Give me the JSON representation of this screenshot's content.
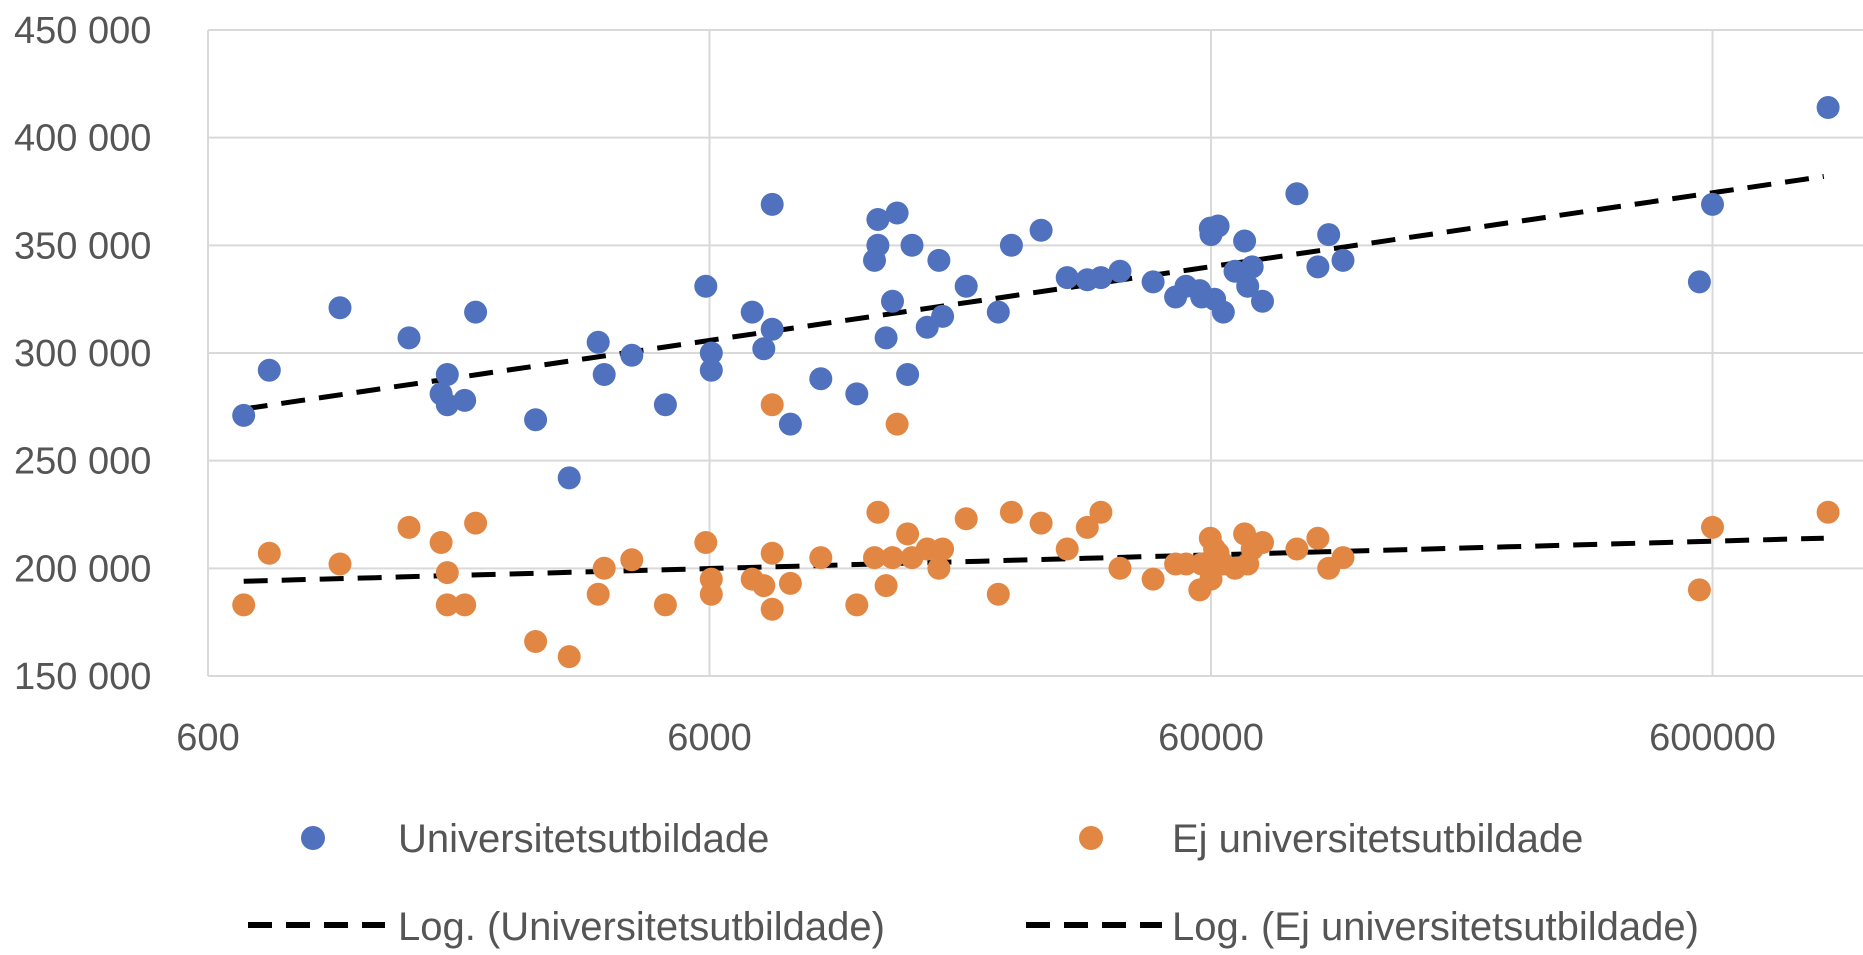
{
  "chart_data": {
    "type": "scatter",
    "title": "",
    "xlabel": "",
    "ylabel": "",
    "x_scale": "log",
    "xlim": [
      600,
      1000000
    ],
    "ylim": [
      150000,
      450000
    ],
    "x_ticks": [
      600,
      6000,
      60000,
      600000
    ],
    "x_tick_labels": [
      "600",
      "6000",
      "60000",
      "600000"
    ],
    "y_ticks": [
      150000,
      200000,
      250000,
      300000,
      350000,
      400000,
      450000
    ],
    "y_tick_labels": [
      "150 000",
      "200 000",
      "250 000",
      "300 000",
      "350 000",
      "400 000",
      "450 000"
    ],
    "grid": true,
    "legend_position": "bottom",
    "colors": {
      "university": "#4f71be",
      "non_university": "#e28743",
      "trend": "#000000",
      "grid": "#d9d9d9"
    },
    "series": [
      {
        "name": "Universitetsutbildade",
        "color": "#4f71be",
        "points": [
          [
            707,
            271000
          ],
          [
            795,
            292000
          ],
          [
            1100,
            321000
          ],
          [
            1510,
            307000
          ],
          [
            1750,
            281000
          ],
          [
            1800,
            290000
          ],
          [
            1800,
            276000
          ],
          [
            1950,
            278000
          ],
          [
            2050,
            319000
          ],
          [
            2700,
            269000
          ],
          [
            3150,
            242000
          ],
          [
            3600,
            305000
          ],
          [
            3700,
            290000
          ],
          [
            4200,
            299000
          ],
          [
            4900,
            276000
          ],
          [
            5900,
            331000
          ],
          [
            6050,
            300000
          ],
          [
            6050,
            292000
          ],
          [
            7300,
            319000
          ],
          [
            7700,
            302000
          ],
          [
            8000,
            311000
          ],
          [
            8000,
            369000
          ],
          [
            8700,
            267000
          ],
          [
            10000,
            288000
          ],
          [
            11800,
            281000
          ],
          [
            12800,
            343000
          ],
          [
            13000,
            350000
          ],
          [
            13000,
            362000
          ],
          [
            13500,
            307000
          ],
          [
            13900,
            324000
          ],
          [
            14200,
            365000
          ],
          [
            14900,
            290000
          ],
          [
            15200,
            350000
          ],
          [
            16300,
            312000
          ],
          [
            17200,
            343000
          ],
          [
            17500,
            317000
          ],
          [
            19500,
            331000
          ],
          [
            22600,
            319000
          ],
          [
            24000,
            350000
          ],
          [
            27500,
            357000
          ],
          [
            31000,
            335000
          ],
          [
            34000,
            334000
          ],
          [
            36200,
            335000
          ],
          [
            39500,
            338000
          ],
          [
            46000,
            333000
          ],
          [
            51000,
            326000
          ],
          [
            53500,
            331000
          ],
          [
            57000,
            329000
          ],
          [
            57500,
            326000
          ],
          [
            59800,
            358000
          ],
          [
            60000,
            355000
          ],
          [
            61000,
            325000
          ],
          [
            62000,
            359000
          ],
          [
            63500,
            319000
          ],
          [
            67000,
            338000
          ],
          [
            70000,
            352000
          ],
          [
            71000,
            331000
          ],
          [
            72500,
            340000
          ],
          [
            76000,
            324000
          ],
          [
            89000,
            374000
          ],
          [
            98000,
            340000
          ],
          [
            103000,
            355000
          ],
          [
            110000,
            343000
          ],
          [
            565000,
            333000
          ],
          [
            600000,
            369000
          ],
          [
            1020000,
            414000
          ]
        ]
      },
      {
        "name": "Ej universitetsutbildade",
        "color": "#e28743",
        "points": [
          [
            707,
            183000
          ],
          [
            795,
            207000
          ],
          [
            1100,
            202000
          ],
          [
            1510,
            219000
          ],
          [
            1750,
            212000
          ],
          [
            1800,
            183000
          ],
          [
            1800,
            198000
          ],
          [
            1950,
            183000
          ],
          [
            2050,
            221000
          ],
          [
            2700,
            166000
          ],
          [
            3150,
            159000
          ],
          [
            3600,
            188000
          ],
          [
            3700,
            200000
          ],
          [
            4200,
            204000
          ],
          [
            4900,
            183000
          ],
          [
            5900,
            212000
          ],
          [
            6050,
            195000
          ],
          [
            6050,
            188000
          ],
          [
            7300,
            195000
          ],
          [
            7700,
            192000
          ],
          [
            8000,
            207000
          ],
          [
            8000,
            181000
          ],
          [
            8000,
            276000
          ],
          [
            8700,
            193000
          ],
          [
            10000,
            205000
          ],
          [
            11800,
            183000
          ],
          [
            12800,
            205000
          ],
          [
            13000,
            226000
          ],
          [
            13500,
            192000
          ],
          [
            13900,
            205000
          ],
          [
            14200,
            267000
          ],
          [
            14900,
            216000
          ],
          [
            15200,
            205000
          ],
          [
            16300,
            209000
          ],
          [
            17200,
            200000
          ],
          [
            17500,
            209000
          ],
          [
            19500,
            223000
          ],
          [
            22600,
            188000
          ],
          [
            24000,
            226000
          ],
          [
            27500,
            221000
          ],
          [
            31000,
            209000
          ],
          [
            34000,
            219000
          ],
          [
            36200,
            226000
          ],
          [
            39500,
            200000
          ],
          [
            46000,
            195000
          ],
          [
            51000,
            202000
          ],
          [
            53500,
            202000
          ],
          [
            57000,
            190000
          ],
          [
            57500,
            202000
          ],
          [
            59800,
            214000
          ],
          [
            60000,
            195000
          ],
          [
            61000,
            209000
          ],
          [
            62000,
            207000
          ],
          [
            63500,
            202000
          ],
          [
            67000,
            200000
          ],
          [
            70000,
            216000
          ],
          [
            71000,
            202000
          ],
          [
            72500,
            209000
          ],
          [
            76000,
            212000
          ],
          [
            89000,
            209000
          ],
          [
            98000,
            214000
          ],
          [
            103000,
            200000
          ],
          [
            110000,
            205000
          ],
          [
            565000,
            190000
          ],
          [
            600000,
            219000
          ],
          [
            1020000,
            226000
          ]
        ]
      }
    ],
    "trendlines": [
      {
        "name": "Log. (Universitetsutbildade)",
        "type": "log",
        "x_range": [
          707,
          1000000
        ],
        "y_at_start": 274000,
        "y_at_end": 382000
      },
      {
        "name": "Log. (Ej universitetsutbildade)",
        "type": "log",
        "x_range": [
          707,
          1000000
        ],
        "y_at_start": 194000,
        "y_at_end": 214000
      }
    ]
  }
}
